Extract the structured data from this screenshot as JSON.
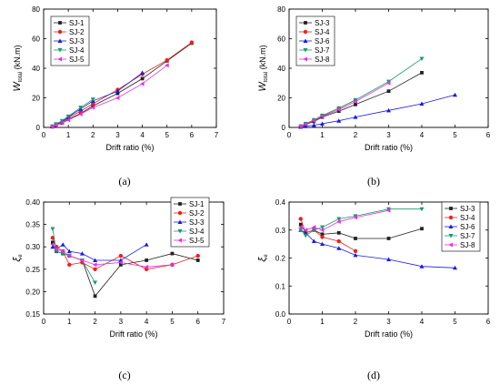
{
  "figure": {
    "captions": [
      "(a)",
      "(b)",
      "(c)",
      "(d)"
    ]
  },
  "chart_data": [
    {
      "type": "line",
      "panel": "a",
      "xlabel": "Drift ratio (%)",
      "ylabel_main": "W",
      "ylabel_sub": "total",
      "ylabel_unit": " (kN.m)",
      "xlim": [
        0,
        7
      ],
      "ylim": [
        0,
        80
      ],
      "xticks": [
        0,
        1,
        2,
        3,
        4,
        5,
        6,
        7
      ],
      "yticks": [
        0,
        20,
        40,
        60,
        80
      ],
      "legend_position": "top-left",
      "series": [
        {
          "name": "SJ-1",
          "color": "#222222",
          "marker": "square",
          "x": [
            0.35,
            0.5,
            0.75,
            1,
            1.5,
            2,
            3,
            4,
            5,
            6
          ],
          "y": [
            0.5,
            1.5,
            3,
            5.5,
            9.5,
            14.5,
            23,
            33,
            45,
            57
          ]
        },
        {
          "name": "SJ-2",
          "color": "#e8231b",
          "marker": "circle",
          "x": [
            0.35,
            0.5,
            0.75,
            1,
            1.5,
            2,
            3,
            4,
            5,
            6
          ],
          "y": [
            0.6,
            1.8,
            3.5,
            6.5,
            11,
            16,
            25.5,
            36,
            45.5,
            57.5
          ]
        },
        {
          "name": "SJ-3",
          "color": "#1a1ae6",
          "marker": "triangle-up",
          "x": [
            0.35,
            0.5,
            0.75,
            1,
            1.5,
            2,
            3,
            4
          ],
          "y": [
            0.7,
            2,
            4,
            7,
            12.5,
            18,
            24.5,
            37
          ]
        },
        {
          "name": "SJ-4",
          "color": "#1a9a6e",
          "marker": "triangle-down",
          "x": [
            0.35,
            0.5,
            0.75,
            1,
            1.5,
            2
          ],
          "y": [
            0.8,
            2.2,
            4.5,
            7.5,
            13.5,
            19
          ]
        },
        {
          "name": "SJ-5",
          "color": "#e033e0",
          "marker": "triangle-left",
          "x": [
            0.35,
            0.5,
            0.75,
            1,
            1.5,
            2,
            3,
            4,
            5
          ],
          "y": [
            0.5,
            1.5,
            3,
            5,
            9,
            13.5,
            20,
            29.5,
            42
          ]
        }
      ]
    },
    {
      "type": "line",
      "panel": "b",
      "xlabel": "Drift ratio (%)",
      "ylabel_main": "W",
      "ylabel_sub": "total",
      "ylabel_unit": " (kN.m)",
      "xlim": [
        0,
        6
      ],
      "ylim": [
        0,
        80
      ],
      "xticks": [
        0,
        1,
        2,
        3,
        4,
        5,
        6
      ],
      "yticks": [
        0,
        20,
        40,
        60,
        80
      ],
      "legend_position": "top-left",
      "series": [
        {
          "name": "SJ-3",
          "color": "#222222",
          "marker": "square",
          "x": [
            0.35,
            0.5,
            0.75,
            1,
            1.5,
            2,
            3,
            4
          ],
          "y": [
            0.7,
            2,
            4,
            7,
            11,
            15.5,
            24.5,
            37
          ]
        },
        {
          "name": "SJ-4",
          "color": "#e8231b",
          "marker": "circle",
          "x": [
            0.35,
            0.5,
            0.75,
            1,
            1.5,
            2
          ],
          "y": [
            0.8,
            2.5,
            5,
            8,
            13,
            18.5
          ]
        },
        {
          "name": "SJ-6",
          "color": "#1a1ae6",
          "marker": "triangle-up",
          "x": [
            0.35,
            0.5,
            0.75,
            1,
            1.5,
            2,
            3,
            4,
            5
          ],
          "y": [
            0.3,
            0.8,
            1.5,
            2.5,
            4.5,
            7,
            11.5,
            16,
            22
          ]
        },
        {
          "name": "SJ-7",
          "color": "#1a9a6e",
          "marker": "triangle-down",
          "x": [
            0.35,
            0.5,
            0.75,
            1,
            1.5,
            2,
            3,
            4
          ],
          "y": [
            0.8,
            2.5,
            5,
            8,
            13,
            18.5,
            31,
            46.5
          ]
        },
        {
          "name": "SJ-8",
          "color": "#e033e0",
          "marker": "triangle-left",
          "x": [
            0.35,
            0.5,
            0.75,
            1,
            1.5,
            2,
            3
          ],
          "y": [
            0.7,
            2.2,
            4.5,
            7.5,
            12,
            17.5,
            30
          ]
        }
      ]
    },
    {
      "type": "line",
      "panel": "c",
      "xlabel": "Drift ratio (%)",
      "ylabel_main": "ξ",
      "ylabel_sub": "e",
      "ylabel_unit": "",
      "xlim": [
        0,
        7
      ],
      "ylim": [
        0.15,
        0.4
      ],
      "xticks": [
        0,
        1,
        2,
        3,
        4,
        5,
        6,
        7
      ],
      "yticks": [
        0.15,
        0.2,
        0.25,
        0.3,
        0.35,
        0.4
      ],
      "ytick_labels": [
        "0.15",
        "0.20",
        "0.25",
        "0.30",
        "0.35",
        "0.40"
      ],
      "legend_position": "top-right",
      "series": [
        {
          "name": "SJ-1",
          "color": "#222222",
          "marker": "square",
          "x": [
            0.35,
            0.5,
            0.75,
            1,
            1.5,
            2,
            3,
            4,
            5,
            6
          ],
          "y": [
            0.31,
            0.29,
            0.285,
            0.28,
            0.27,
            0.19,
            0.26,
            0.27,
            0.285,
            0.27
          ]
        },
        {
          "name": "SJ-2",
          "color": "#e8231b",
          "marker": "circle",
          "x": [
            0.35,
            0.5,
            0.75,
            1,
            1.5,
            2,
            3,
            4,
            5,
            6
          ],
          "y": [
            0.32,
            0.3,
            0.29,
            0.26,
            0.265,
            0.25,
            0.28,
            0.25,
            0.26,
            0.28
          ]
        },
        {
          "name": "SJ-3",
          "color": "#1a1ae6",
          "marker": "triangle-up",
          "x": [
            0.35,
            0.5,
            0.75,
            1,
            1.5,
            2,
            3,
            4
          ],
          "y": [
            0.3,
            0.295,
            0.305,
            0.29,
            0.285,
            0.27,
            0.27,
            0.305
          ]
        },
        {
          "name": "SJ-4",
          "color": "#1a9a6e",
          "marker": "triangle-down",
          "x": [
            0.35,
            0.5,
            0.75,
            1,
            1.5,
            2
          ],
          "y": [
            0.34,
            0.29,
            0.285,
            0.28,
            0.27,
            0.22
          ]
        },
        {
          "name": "SJ-5",
          "color": "#e033e0",
          "marker": "triangle-left",
          "x": [
            0.35,
            0.5,
            0.75,
            1,
            1.5,
            2,
            3,
            4,
            5
          ],
          "y": [
            0.305,
            0.295,
            0.29,
            0.28,
            0.27,
            0.26,
            0.265,
            0.255,
            0.26
          ]
        }
      ]
    },
    {
      "type": "line",
      "panel": "d",
      "xlabel": "Drift ratio (%)",
      "ylabel_main": "ξ",
      "ylabel_sub": "e",
      "ylabel_unit": "",
      "xlim": [
        0,
        6
      ],
      "ylim": [
        0.0,
        0.4
      ],
      "xticks": [
        0,
        1,
        2,
        3,
        4,
        5,
        6
      ],
      "yticks": [
        0.0,
        0.1,
        0.2,
        0.3,
        0.4
      ],
      "ytick_labels": [
        "0.0",
        "0.1",
        "0.2",
        "0.3",
        "0.4"
      ],
      "legend_position": "top-right",
      "series": [
        {
          "name": "SJ-3",
          "color": "#222222",
          "marker": "square",
          "x": [
            0.35,
            0.5,
            0.75,
            1,
            1.5,
            2,
            3,
            4
          ],
          "y": [
            0.32,
            0.29,
            0.3,
            0.285,
            0.29,
            0.27,
            0.27,
            0.305
          ]
        },
        {
          "name": "SJ-4",
          "color": "#e8231b",
          "marker": "circle",
          "x": [
            0.35,
            0.5,
            0.75,
            1,
            1.5,
            2
          ],
          "y": [
            0.34,
            0.29,
            0.3,
            0.275,
            0.26,
            0.225
          ]
        },
        {
          "name": "SJ-6",
          "color": "#1a1ae6",
          "marker": "triangle-up",
          "x": [
            0.35,
            0.5,
            0.75,
            1,
            1.5,
            2,
            3,
            4,
            5
          ],
          "y": [
            0.3,
            0.29,
            0.26,
            0.25,
            0.235,
            0.21,
            0.195,
            0.17,
            0.165
          ]
        },
        {
          "name": "SJ-7",
          "color": "#1a9a6e",
          "marker": "triangle-down",
          "x": [
            0.35,
            0.5,
            0.75,
            1,
            1.5,
            2,
            3,
            4
          ],
          "y": [
            0.3,
            0.28,
            0.3,
            0.31,
            0.34,
            0.35,
            0.375,
            0.375
          ]
        },
        {
          "name": "SJ-8",
          "color": "#e033e0",
          "marker": "triangle-left",
          "x": [
            0.35,
            0.5,
            0.75,
            1,
            1.5,
            2,
            3
          ],
          "y": [
            0.31,
            0.3,
            0.31,
            0.3,
            0.33,
            0.345,
            0.37
          ]
        }
      ]
    }
  ]
}
